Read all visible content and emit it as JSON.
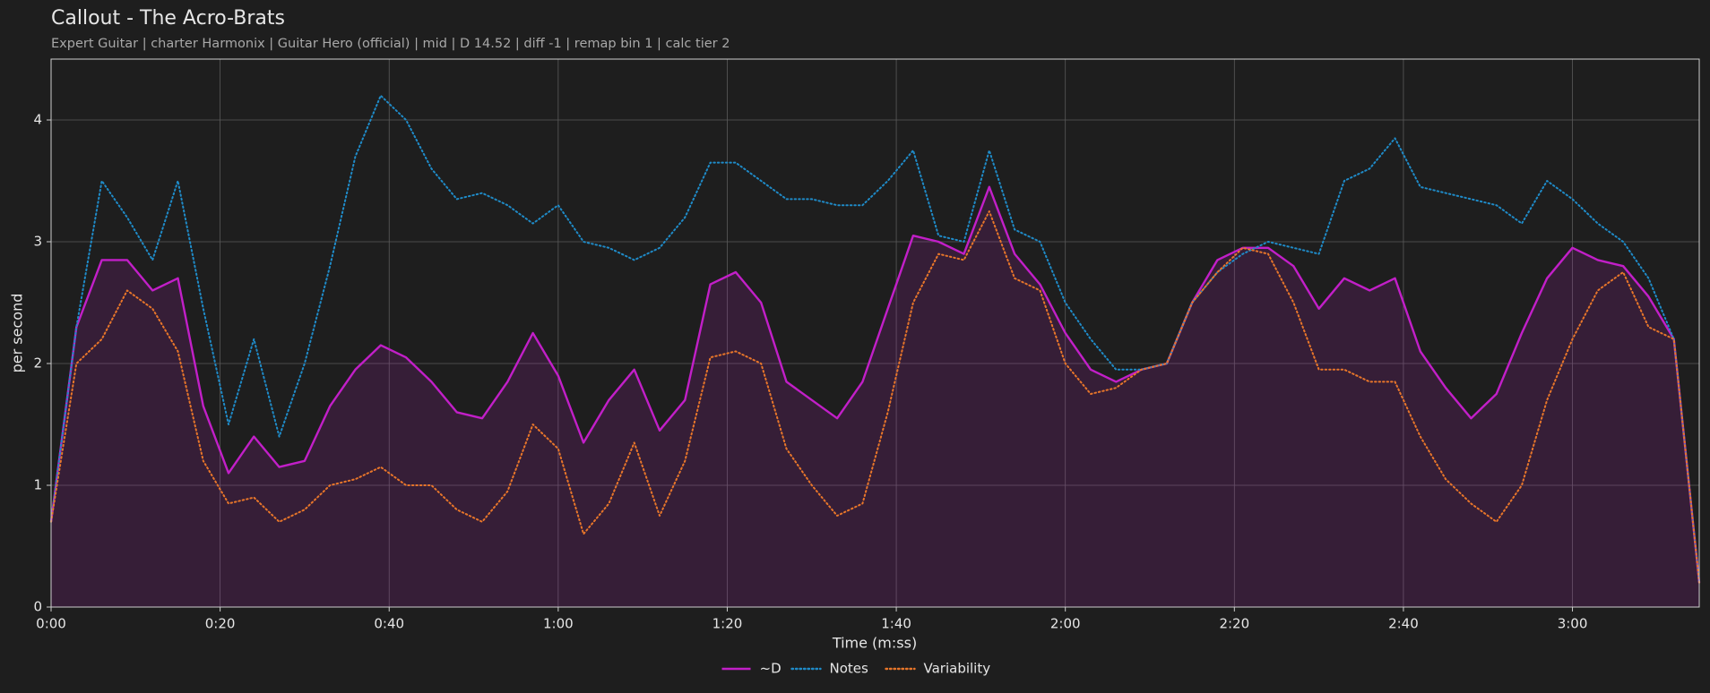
{
  "chart_data": {
    "type": "line",
    "title": "Callout - The Acro-Brats",
    "subtitle": "Expert Guitar  |  charter Harmonix  |  Guitar Hero (official)  |  mid  |  D 14.52  |  diff -1  |  remap bin 1  |  calc tier 2",
    "x_label": "Time (m:ss)",
    "y_label": "per second",
    "x": [
      0,
      3,
      6,
      9,
      12,
      15,
      18,
      21,
      24,
      27,
      30,
      33,
      36,
      39,
      42,
      45,
      48,
      51,
      54,
      57,
      60,
      63,
      66,
      69,
      72,
      75,
      78,
      81,
      84,
      87,
      90,
      93,
      96,
      99,
      102,
      105,
      108,
      111,
      114,
      117,
      120,
      123,
      126,
      129,
      132,
      135,
      138,
      141,
      144,
      147,
      150,
      153,
      156,
      159,
      162,
      165,
      168,
      171,
      174,
      177,
      180,
      183,
      186,
      189,
      192,
      195
    ],
    "series": [
      {
        "name": "~D",
        "color": "#c21fc8",
        "style": "solid",
        "fill": true,
        "values": [
          0.7,
          2.3,
          2.85,
          2.85,
          2.6,
          2.7,
          1.65,
          1.1,
          1.4,
          1.15,
          1.2,
          1.65,
          1.95,
          2.15,
          2.05,
          1.85,
          1.6,
          1.55,
          1.85,
          2.25,
          1.9,
          1.35,
          1.7,
          1.95,
          1.45,
          1.7,
          2.65,
          2.75,
          2.5,
          1.85,
          1.7,
          1.55,
          1.85,
          2.45,
          3.05,
          3.0,
          2.9,
          3.45,
          2.9,
          2.65,
          2.25,
          1.95,
          1.85,
          1.95,
          2.0,
          2.5,
          2.85,
          2.95,
          2.95,
          2.8,
          2.45,
          2.7,
          2.6,
          2.7,
          2.1,
          1.8,
          1.55,
          1.75,
          2.25,
          2.7,
          2.95,
          2.85,
          2.8,
          2.55,
          2.2,
          0.2
        ]
      },
      {
        "name": "Notes",
        "color": "#1f8bc8",
        "style": "dotted",
        "fill": false,
        "values": [
          0.7,
          2.3,
          3.5,
          3.2,
          2.85,
          3.5,
          2.45,
          1.5,
          2.2,
          1.4,
          2.0,
          2.8,
          3.7,
          4.2,
          4.0,
          3.6,
          3.35,
          3.4,
          3.3,
          3.15,
          3.3,
          3.0,
          2.95,
          2.85,
          2.95,
          3.2,
          3.65,
          3.65,
          3.5,
          3.35,
          3.35,
          3.3,
          3.3,
          3.5,
          3.75,
          3.05,
          3.0,
          3.75,
          3.1,
          3.0,
          2.5,
          2.2,
          1.95,
          1.95,
          2.0,
          2.5,
          2.75,
          2.9,
          3.0,
          2.95,
          2.9,
          3.5,
          3.6,
          3.85,
          3.45,
          3.4,
          3.35,
          3.3,
          3.15,
          3.5,
          3.35,
          3.15,
          3.0,
          2.7,
          2.2,
          0.2
        ]
      },
      {
        "name": "Variability",
        "color": "#e8762a",
        "style": "dotted",
        "fill": false,
        "values": [
          0.7,
          2.0,
          2.2,
          2.6,
          2.45,
          2.1,
          1.2,
          0.85,
          0.9,
          0.7,
          0.8,
          1.0,
          1.05,
          1.15,
          1.0,
          1.0,
          0.8,
          0.7,
          0.95,
          1.5,
          1.3,
          0.6,
          0.85,
          1.35,
          0.75,
          1.2,
          2.05,
          2.1,
          2.0,
          1.3,
          1.0,
          0.75,
          0.85,
          1.6,
          2.5,
          2.9,
          2.85,
          3.25,
          2.7,
          2.6,
          2.0,
          1.75,
          1.8,
          1.95,
          2.0,
          2.5,
          2.75,
          2.95,
          2.9,
          2.5,
          1.95,
          1.95,
          1.85,
          1.85,
          1.4,
          1.05,
          0.85,
          0.7,
          1.0,
          1.7,
          2.2,
          2.6,
          2.75,
          2.3,
          2.2,
          0.2
        ]
      }
    ],
    "xlim": [
      0,
      195
    ],
    "ylim": [
      0,
      4.5
    ],
    "xticks": [
      {
        "value": 0,
        "label": "0:00"
      },
      {
        "value": 20,
        "label": "0:20"
      },
      {
        "value": 40,
        "label": "0:40"
      },
      {
        "value": 60,
        "label": "1:00"
      },
      {
        "value": 80,
        "label": "1:20"
      },
      {
        "value": 100,
        "label": "1:40"
      },
      {
        "value": 120,
        "label": "2:00"
      },
      {
        "value": 140,
        "label": "2:20"
      },
      {
        "value": 160,
        "label": "2:40"
      },
      {
        "value": 180,
        "label": "3:00"
      }
    ],
    "yticks": [
      0,
      1,
      2,
      3,
      4
    ],
    "grid": true,
    "legend": "bottom"
  }
}
